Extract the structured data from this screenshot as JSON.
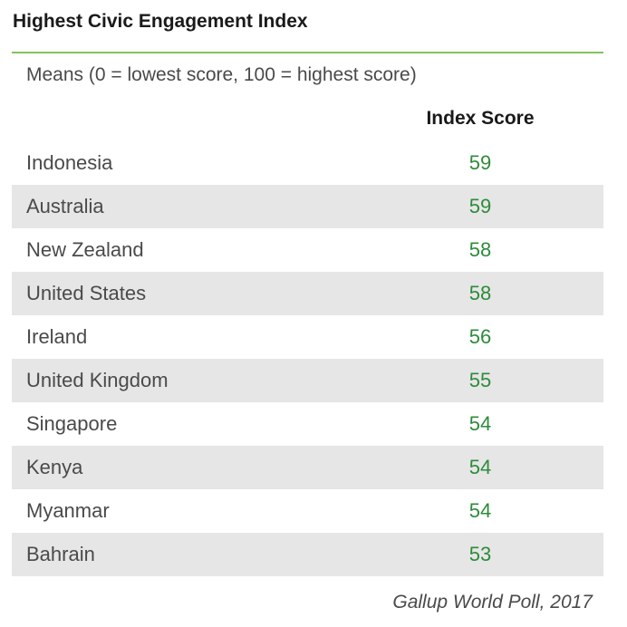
{
  "chart_data": {
    "type": "table",
    "title": "Highest Civic Engagement Index",
    "subtitle": "Means (0 = lowest score, 100 = highest score)",
    "column_header": "Index Score",
    "categories": [
      "Indonesia",
      "Australia",
      "New Zealand",
      "United States",
      "Ireland",
      "United Kingdom",
      "Singapore",
      "Kenya",
      "Myanmar",
      "Bahrain"
    ],
    "values": [
      59,
      59,
      58,
      58,
      56,
      55,
      54,
      54,
      54,
      53
    ],
    "source": "Gallup World Poll, 2017"
  },
  "colors": {
    "accent_rule": "#84c35c",
    "score_text": "#2e8b3a",
    "row_shade": "#e6e6e6"
  }
}
